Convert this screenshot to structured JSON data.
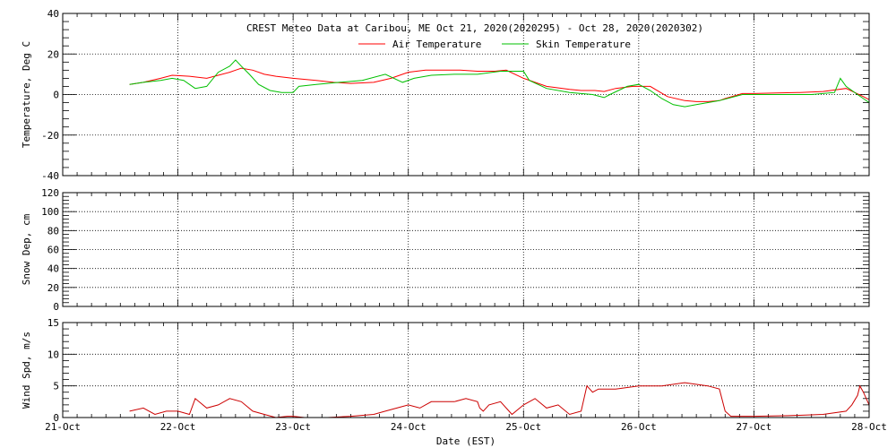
{
  "chart_data": [
    {
      "type": "line",
      "title": "CREST Meteo Data at Caribou, ME   Oct 21, 2020(2020295) - Oct 28, 2020(2020302)",
      "ylabel": "Temperature, Deg C",
      "xlabel": "",
      "ylim": [
        -40,
        40
      ],
      "yticks": [
        "-40",
        "-20",
        "0",
        "20",
        "40"
      ],
      "xlim": [
        "2020-10-21",
        "2020-10-28"
      ],
      "grid": true,
      "legend_position": "top-center",
      "series": [
        {
          "name": "Air Temperature",
          "color": "#ff0000",
          "x_days": [
            0.58,
            0.7,
            0.85,
            0.95,
            1.1,
            1.25,
            1.35,
            1.45,
            1.5,
            1.55,
            1.65,
            1.75,
            1.85,
            2.0,
            2.2,
            2.35,
            2.5,
            2.7,
            2.85,
            3.0,
            3.15,
            3.3,
            3.45,
            3.6,
            3.75,
            3.85,
            4.0,
            4.2,
            4.4,
            4.5,
            4.6,
            4.62,
            4.7,
            4.8,
            4.95,
            5.1,
            5.25,
            5.4,
            5.5,
            5.6,
            5.7,
            5.75,
            5.9,
            6.0,
            6.2,
            6.4,
            6.6,
            6.8,
            6.95,
            7.0
          ],
          "values": [
            5,
            6,
            8,
            9.5,
            9,
            8,
            9.5,
            11,
            12,
            13,
            12,
            10,
            9,
            8,
            7,
            6,
            5.5,
            6,
            8,
            11,
            12,
            12,
            12,
            11.5,
            11.5,
            12,
            8,
            4,
            2.5,
            2,
            2,
            2,
            1.5,
            3,
            4,
            4,
            -1,
            -3,
            -3.5,
            -3.5,
            -3,
            -2,
            0.5,
            0.5,
            0.8,
            1,
            1.5,
            3,
            -1,
            -2.5
          ]
        },
        {
          "name": "Skin Temperature",
          "color": "#00c000",
          "x_days": [
            0.58,
            0.7,
            0.85,
            0.95,
            1.05,
            1.15,
            1.25,
            1.35,
            1.45,
            1.5,
            1.55,
            1.62,
            1.7,
            1.8,
            1.9,
            2.0,
            2.05,
            2.2,
            2.4,
            2.6,
            2.8,
            2.95,
            3.05,
            3.2,
            3.4,
            3.6,
            3.8,
            4.0,
            4.05,
            4.2,
            4.4,
            4.6,
            4.7,
            4.75,
            4.9,
            5.0,
            5.1,
            5.2,
            5.3,
            5.4,
            5.5,
            5.7,
            5.9,
            6.0,
            6.2,
            6.5,
            6.7,
            6.75,
            6.8,
            6.9,
            7.0
          ],
          "values": [
            5,
            6,
            7,
            8,
            7,
            3,
            4,
            11,
            14,
            17,
            14,
            10,
            5,
            2,
            1,
            1,
            4,
            5,
            6,
            7,
            10,
            6,
            8,
            9.5,
            10,
            10,
            11.5,
            11.5,
            7,
            3,
            1,
            0,
            -1.5,
            0,
            4,
            5,
            2,
            -2,
            -5,
            -6,
            -5,
            -3,
            0,
            0,
            0,
            0,
            1,
            8,
            4,
            0,
            -4
          ]
        }
      ]
    },
    {
      "type": "line",
      "title": "",
      "ylabel": "Snow Dep, cm",
      "ylim": [
        0,
        120
      ],
      "yticks": [
        "0",
        "20",
        "40",
        "60",
        "80",
        "100",
        "120"
      ],
      "grid": true,
      "series": [
        {
          "name": "",
          "color": "#0000ff",
          "x_days": [
            0.0,
            0.5,
            1.0,
            1.5,
            2.0,
            2.5,
            3.0,
            3.5,
            4.0,
            4.5,
            5.0,
            5.5,
            6.0,
            6.5,
            7.0
          ],
          "values": [
            0,
            0,
            0,
            0,
            0,
            0,
            0,
            0,
            0,
            0,
            0,
            0,
            0,
            0,
            0
          ]
        }
      ]
    },
    {
      "type": "line",
      "title": "",
      "ylabel": "Wind Spd, m/s",
      "xlabel": "Date (EST)",
      "ylim": [
        0,
        15
      ],
      "yticks": [
        "0",
        "5",
        "10",
        "15"
      ],
      "xticks": [
        "21-Oct",
        "22-Oct",
        "23-Oct",
        "24-Oct",
        "25-Oct",
        "26-Oct",
        "27-Oct",
        "28-Oct"
      ],
      "grid": true,
      "series": [
        {
          "name": "",
          "color": "#cc0000",
          "x_days": [
            0.58,
            0.7,
            0.8,
            0.9,
            1.0,
            1.1,
            1.15,
            1.25,
            1.35,
            1.45,
            1.55,
            1.65,
            1.75,
            1.85,
            1.95,
            2.0,
            2.1,
            2.3,
            2.5,
            2.7,
            2.8,
            2.9,
            3.0,
            3.1,
            3.2,
            3.4,
            3.5,
            3.6,
            3.62,
            3.65,
            3.7,
            3.8,
            3.9,
            4.0,
            4.1,
            4.2,
            4.3,
            4.4,
            4.5,
            4.55,
            4.6,
            4.65,
            4.8,
            5.0,
            5.2,
            5.4,
            5.6,
            5.7,
            5.75,
            5.8,
            6.0,
            6.3,
            6.6,
            6.8,
            6.85,
            6.9,
            6.92,
            6.95,
            7.0
          ],
          "values": [
            1,
            1.5,
            0.5,
            1,
            1,
            0.5,
            3,
            1.5,
            2,
            3,
            2.5,
            1,
            0.5,
            0,
            0.2,
            0.2,
            0,
            0,
            0.2,
            0.5,
            1,
            1.5,
            2,
            1.5,
            2.5,
            2.5,
            3,
            2.5,
            1.5,
            1,
            2,
            2.5,
            0.5,
            2,
            3,
            1.5,
            2,
            0.5,
            1,
            5,
            4,
            4.5,
            4.5,
            5,
            5,
            5.5,
            5,
            4.5,
            1,
            0.2,
            0.2,
            0.3,
            0.5,
            1,
            2,
            3.5,
            5,
            4,
            2
          ]
        }
      ]
    }
  ]
}
